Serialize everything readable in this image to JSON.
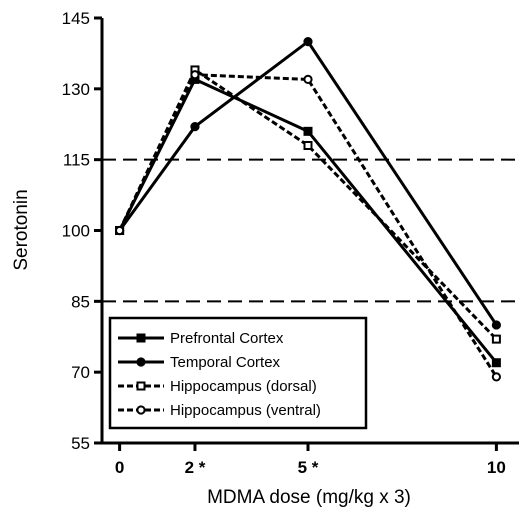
{
  "chart_data": {
    "type": "line",
    "title": "",
    "xlabel": "MDMA dose (mg/kg x 3)",
    "ylabel": "Serotonin",
    "ylim": [
      55,
      145
    ],
    "yticks": [
      55,
      70,
      85,
      100,
      115,
      130,
      145
    ],
    "x": [
      0,
      2,
      5,
      10
    ],
    "xtick_labels": [
      "0",
      "2 *",
      "5 *",
      "10"
    ],
    "xlim": [
      -0.6,
      10.6
    ],
    "reference_lines": [
      85,
      115
    ],
    "grid": false,
    "legend_position": "bottom-left",
    "series": [
      {
        "name": "Prefrontal Cortex",
        "values": [
          100,
          132,
          121,
          72
        ],
        "line": "solid",
        "marker": "filled-square"
      },
      {
        "name": "Temporal Cortex",
        "values": [
          100,
          122,
          140,
          80
        ],
        "line": "solid",
        "marker": "filled-circle"
      },
      {
        "name": "Hippocampus (dorsal)",
        "values": [
          100,
          134,
          118,
          77
        ],
        "line": "dashed",
        "marker": "open-square"
      },
      {
        "name": "Hippocampus (ventral)",
        "values": [
          100,
          133,
          132,
          69
        ],
        "line": "dashed",
        "marker": "open-circle"
      }
    ],
    "colors": {
      "ink": "#000000",
      "background": "#ffffff"
    }
  }
}
